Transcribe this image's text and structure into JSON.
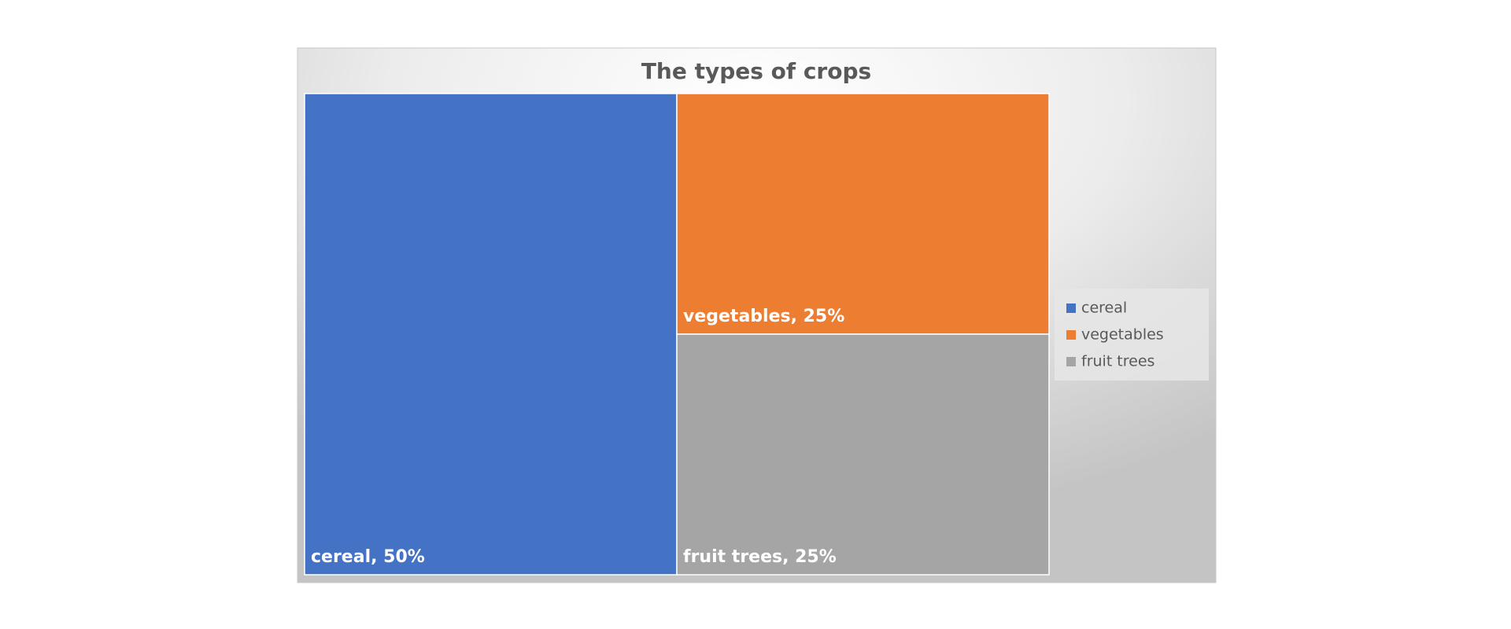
{
  "chart_data": {
    "type": "treemap",
    "title": "The types of crops",
    "categories": [
      "cereal",
      "vegetables",
      "fruit trees"
    ],
    "values": [
      50,
      25,
      25
    ],
    "value_labels": [
      "cereal, 50%",
      "vegetables, 25%",
      "fruit trees, 25%"
    ],
    "colors": [
      "#4472c4",
      "#ed7d31",
      "#a5a5a5"
    ],
    "legend": "right"
  }
}
